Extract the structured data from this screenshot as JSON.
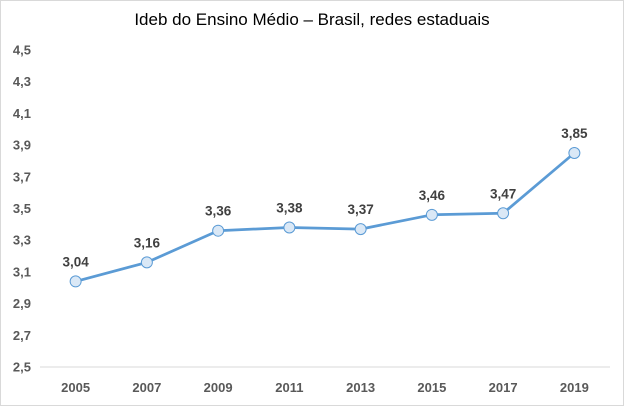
{
  "chart_data": {
    "type": "line",
    "title": "Ideb do Ensino Médio – Brasil, redes estaduais",
    "xlabel": "",
    "ylabel": "",
    "categories": [
      "2005",
      "2007",
      "2009",
      "2011",
      "2013",
      "2015",
      "2017",
      "2019"
    ],
    "series": [
      {
        "values": [
          3.04,
          3.16,
          3.36,
          3.38,
          3.37,
          3.46,
          3.47,
          3.85
        ],
        "data_labels": [
          "3,04",
          "3,16",
          "3,36",
          "3,38",
          "3,37",
          "3,46",
          "3,47",
          "3,85"
        ],
        "color": "#5b9bd5",
        "marker_fill": "#dae8f6",
        "marker": "circle"
      }
    ],
    "ylim": [
      2.5,
      4.5
    ],
    "y_ticks": [
      2.5,
      2.7,
      2.9,
      3.1,
      3.3,
      3.5,
      3.7,
      3.9,
      4.1,
      4.3,
      4.5
    ],
    "y_tick_labels": [
      "2,5",
      "2,7",
      "2,9",
      "3,1",
      "3,3",
      "3,5",
      "3,7",
      "3,9",
      "4,1",
      "4,3",
      "4,5"
    ],
    "grid": false,
    "legend": "none",
    "colors": {
      "axis_text": "#595959",
      "data_label_text": "#404040"
    }
  }
}
